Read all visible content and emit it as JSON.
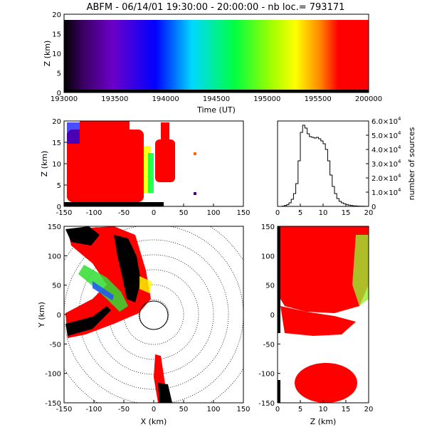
{
  "chart_data": [
    {
      "type": "scatter",
      "panel": "time-height",
      "title": "ABFM - 06/14/01 19:30:00 - 20:00:00 - nb loc.= 793171",
      "xlabel": "Time (UT)",
      "ylabel": "Z (km)",
      "xlim": [
        193000,
        200000
      ],
      "ylim": [
        0,
        20
      ],
      "x_ticks": [
        "193000",
        "193500",
        "194000",
        "194500",
        "195000",
        "195500",
        "200000"
      ],
      "y_ticks": [
        "0",
        "5",
        "10",
        "15",
        "20"
      ],
      "color_by": "time",
      "colors": [
        "#000000",
        "#6b00c8",
        "#0000ff",
        "#00d4ff",
        "#00ff00",
        "#ffff00",
        "#ff0000"
      ]
    },
    {
      "type": "scatter",
      "panel": "x-z",
      "xlabel": "",
      "ylabel": "Z (km)",
      "xlim": [
        -150,
        150
      ],
      "ylim": [
        0,
        20
      ],
      "x_ticks": [
        "-150",
        "-100",
        "-50",
        "0",
        "50",
        "100",
        "150"
      ],
      "y_ticks": [
        "0",
        "5",
        "10",
        "15",
        "20"
      ]
    },
    {
      "type": "line",
      "panel": "histogram",
      "xlabel": "",
      "ylabel": "number of sources",
      "xlim": [
        0,
        20
      ],
      "ylim": [
        0,
        60000
      ],
      "x_ticks": [
        "0",
        "5",
        "10",
        "15",
        "20"
      ],
      "y_ticks": [
        {
          "mantissa": "0",
          "exp": ""
        },
        {
          "mantissa": "1.0×10",
          "exp": "4"
        },
        {
          "mantissa": "2.0×10",
          "exp": "4"
        },
        {
          "mantissa": "3.0×10",
          "exp": "4"
        },
        {
          "mantissa": "4.0×10",
          "exp": "4"
        },
        {
          "mantissa": "5.0×10",
          "exp": "4"
        },
        {
          "mantissa": "6.0×10",
          "exp": "4"
        }
      ],
      "x": [
        0,
        0.5,
        1,
        1.5,
        2,
        2.5,
        3,
        3.5,
        4,
        4.5,
        5,
        5.5,
        6,
        6.5,
        7,
        7.5,
        8,
        8.5,
        9,
        9.5,
        10,
        10.5,
        11,
        11.5,
        12,
        12.5,
        13,
        13.5,
        14,
        14.5,
        15,
        15.5,
        16,
        16.5,
        17,
        17.5,
        18,
        18.5,
        19,
        19.5
      ],
      "y": [
        0,
        0,
        200,
        600,
        1200,
        2500,
        5000,
        9000,
        16000,
        32000,
        52000,
        57000,
        55000,
        51000,
        49000,
        48500,
        48000,
        48500,
        47500,
        46000,
        44000,
        40000,
        32000,
        22000,
        14000,
        9000,
        5500,
        3500,
        2500,
        1800,
        1300,
        900,
        600,
        400,
        300,
        200,
        150,
        100,
        50,
        0
      ]
    },
    {
      "type": "scatter",
      "panel": "x-y",
      "xlabel": "X (km)",
      "ylabel": "Y (km)",
      "xlim": [
        -150,
        150
      ],
      "ylim": [
        -150,
        150
      ],
      "x_ticks": [
        "-150",
        "-100",
        "-50",
        "0",
        "50",
        "100",
        "150"
      ],
      "y_ticks": [
        "-150",
        "-100",
        "-50",
        "0",
        "50",
        "100",
        "150"
      ],
      "range_rings_km": [
        25,
        50,
        75,
        100,
        125,
        150,
        175
      ]
    },
    {
      "type": "scatter",
      "panel": "z-y",
      "xlabel": "Z (km)",
      "ylabel": "",
      "xlim": [
        0,
        20
      ],
      "ylim": [
        -150,
        150
      ],
      "x_ticks": [
        "0",
        "5",
        "10",
        "15",
        "20"
      ],
      "y_ticks": [
        "-150",
        "-100",
        "-50",
        "0",
        "50",
        "100",
        "150"
      ]
    }
  ]
}
